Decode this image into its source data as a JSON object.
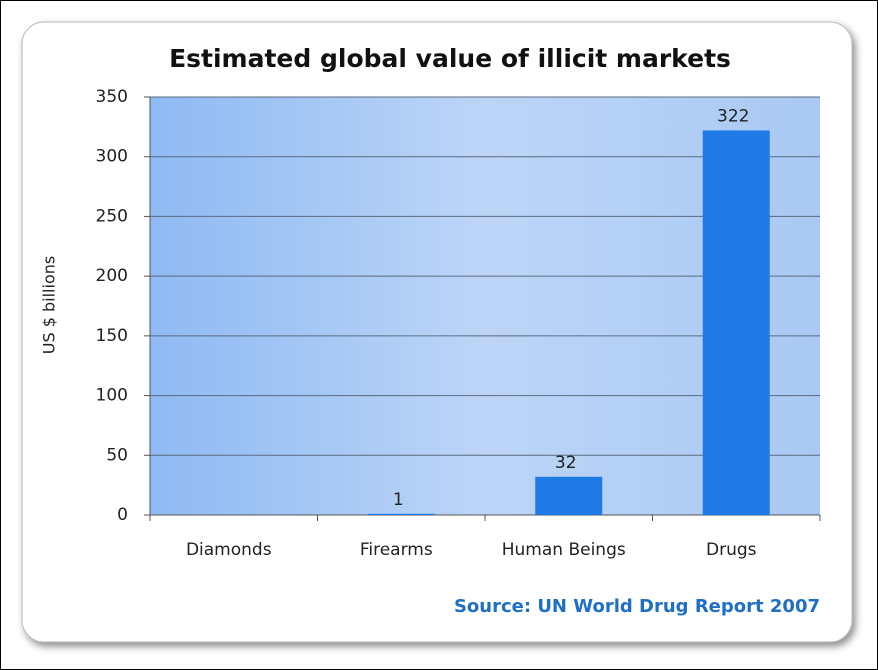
{
  "chart_data": {
    "type": "bar",
    "title": "Estimated global value of illicit markets",
    "ylabel": "US $ billions",
    "source": "Source: UN World Drug Report 2007",
    "categories": [
      "Diamonds",
      "Firearms",
      "Human Beings",
      "Drugs"
    ],
    "values": [
      0,
      1,
      32,
      322
    ],
    "value_labels": [
      null,
      "1",
      "32",
      "322"
    ],
    "color": "#1f7ae6",
    "ylim": [
      0,
      350
    ],
    "yticks": [
      0,
      50,
      100,
      150,
      200,
      250,
      300,
      350
    ],
    "grid": true
  }
}
